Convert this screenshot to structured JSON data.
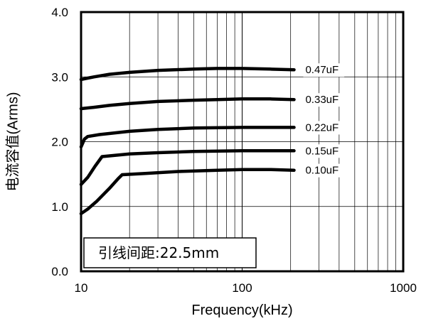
{
  "chart_data": {
    "type": "line",
    "xlabel": "Frequency(kHz)",
    "ylabel": "电流容值(Arms)",
    "x_scale": "log",
    "xlim": [
      10,
      1000
    ],
    "ylim": [
      0.0,
      4.0
    ],
    "x_ticks": [
      {
        "value": 10,
        "label": "10"
      },
      {
        "value": 100,
        "label": "100"
      },
      {
        "value": 1000,
        "label": "1000"
      }
    ],
    "y_ticks": [
      {
        "value": 0.0,
        "label": "0.0"
      },
      {
        "value": 1.0,
        "label": "1.0"
      },
      {
        "value": 2.0,
        "label": "2.0"
      },
      {
        "value": 3.0,
        "label": "3.0"
      },
      {
        "value": 4.0,
        "label": "4.0"
      }
    ],
    "grid": true,
    "annotation": "引线间距:22.5mm",
    "series": [
      {
        "name": "0.47uF",
        "points": [
          [
            10,
            2.96
          ],
          [
            12,
            3.0
          ],
          [
            15,
            3.04
          ],
          [
            20,
            3.07
          ],
          [
            30,
            3.1
          ],
          [
            50,
            3.12
          ],
          [
            70,
            3.13
          ],
          [
            100,
            3.13
          ],
          [
            150,
            3.12
          ],
          [
            210,
            3.11
          ]
        ]
      },
      {
        "name": "0.33uF",
        "points": [
          [
            10,
            2.51
          ],
          [
            12,
            2.53
          ],
          [
            15,
            2.56
          ],
          [
            20,
            2.59
          ],
          [
            30,
            2.62
          ],
          [
            50,
            2.64
          ],
          [
            70,
            2.65
          ],
          [
            100,
            2.66
          ],
          [
            150,
            2.66
          ],
          [
            210,
            2.65
          ]
        ]
      },
      {
        "name": "0.22uF",
        "points": [
          [
            10,
            1.92
          ],
          [
            10.5,
            2.04
          ],
          [
            11,
            2.08
          ],
          [
            13,
            2.11
          ],
          [
            20,
            2.16
          ],
          [
            30,
            2.19
          ],
          [
            50,
            2.21
          ],
          [
            100,
            2.22
          ],
          [
            150,
            2.22
          ],
          [
            210,
            2.22
          ]
        ]
      },
      {
        "name": "0.15uF",
        "points": [
          [
            10,
            1.34
          ],
          [
            11,
            1.45
          ],
          [
            12.2,
            1.62
          ],
          [
            13.5,
            1.77
          ],
          [
            20,
            1.81
          ],
          [
            30,
            1.83
          ],
          [
            50,
            1.85
          ],
          [
            100,
            1.86
          ],
          [
            150,
            1.86
          ],
          [
            210,
            1.86
          ]
        ]
      },
      {
        "name": "0.10uF",
        "points": [
          [
            10,
            0.89
          ],
          [
            11,
            0.96
          ],
          [
            12.5,
            1.08
          ],
          [
            15,
            1.28
          ],
          [
            17,
            1.43
          ],
          [
            18,
            1.49
          ],
          [
            25,
            1.51
          ],
          [
            40,
            1.54
          ],
          [
            70,
            1.56
          ],
          [
            100,
            1.57
          ],
          [
            150,
            1.57
          ],
          [
            210,
            1.56
          ]
        ]
      }
    ]
  }
}
